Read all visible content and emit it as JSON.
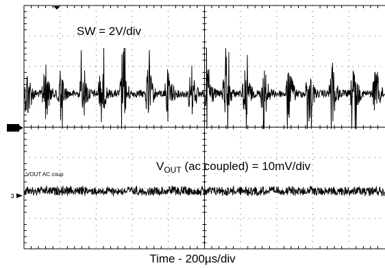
{
  "chart_data": {
    "type": "line",
    "title": "",
    "xlabel": "Time - 200µs/div",
    "ylabel": "",
    "grid": true,
    "divisions": {
      "x": 10,
      "y": 8
    },
    "series": [
      {
        "name": "SW",
        "annotation": "SW = 2V/div",
        "channel_marker": "1",
        "trace": "switching noise, bursts",
        "center_div": 2.9,
        "burst_times_div": [
          0.05,
          0.55,
          0.95,
          1.6,
          2.1,
          2.7,
          3.4,
          3.95,
          4.6,
          5.05,
          5.55,
          6.1,
          6.6,
          7.3,
          7.85,
          8.5,
          9.1,
          9.7
        ],
        "burst_amplitude_div": 1.9
      },
      {
        "name": "VOUT AC coup",
        "annotation_main": "V",
        "annotation_sub": "OUT",
        "annotation_rest": " (ac coupled) = 10mV/div",
        "channel_marker": "3",
        "trace": "output ripple, ac coupled",
        "center_div": 6.1,
        "ripple_amplitude_div": 0.18
      }
    ]
  }
}
